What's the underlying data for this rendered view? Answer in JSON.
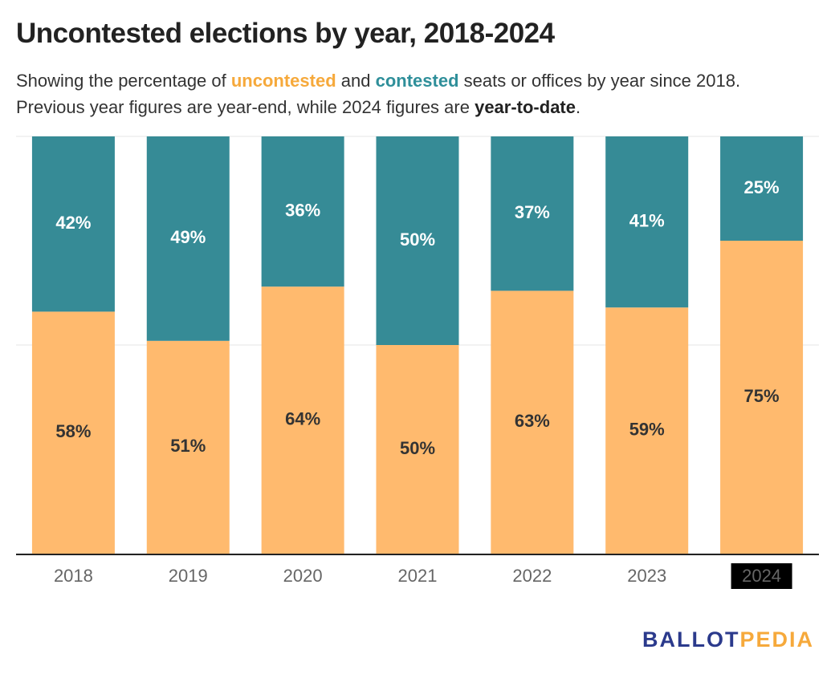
{
  "header": {
    "title": "Uncontested elections by year, 2018-2024",
    "subtitle": {
      "pre": "Showing the percentage of ",
      "uncontested_word": "uncontested",
      "mid": " and ",
      "contested_word": "contested",
      "post": " seats or offices by year since 2018.",
      "line2_pre": "Previous year figures are year-end, while 2024 figures are ",
      "line2_bold": "year-to-date",
      "line2_post": "."
    }
  },
  "logo": {
    "part1": "BALLOT",
    "part2": "PEDIA"
  },
  "colors": {
    "uncontested": "#ffba6e",
    "contested": "#368b96",
    "highlight_year_bg": "#000000",
    "highlight_year_text": "#ffffff",
    "label_on_uncontested": "#333333",
    "label_on_contested": "#ffffff"
  },
  "chart_data": {
    "type": "bar",
    "stacked": true,
    "categories": [
      "2018",
      "2019",
      "2020",
      "2021",
      "2022",
      "2023",
      "2024"
    ],
    "highlight_category": "2024",
    "series": [
      {
        "name": "uncontested",
        "values": [
          58,
          51,
          64,
          50,
          63,
          59,
          75
        ],
        "labels": [
          "58%",
          "51%",
          "64%",
          "50%",
          "63%",
          "59%",
          "75%"
        ]
      },
      {
        "name": "contested",
        "values": [
          42,
          49,
          36,
          50,
          37,
          41,
          25
        ],
        "labels": [
          "42%",
          "49%",
          "36%",
          "50%",
          "37%",
          "41%",
          "25%"
        ]
      }
    ],
    "ylim": [
      0,
      100
    ],
    "grid": true,
    "legend": "none"
  }
}
